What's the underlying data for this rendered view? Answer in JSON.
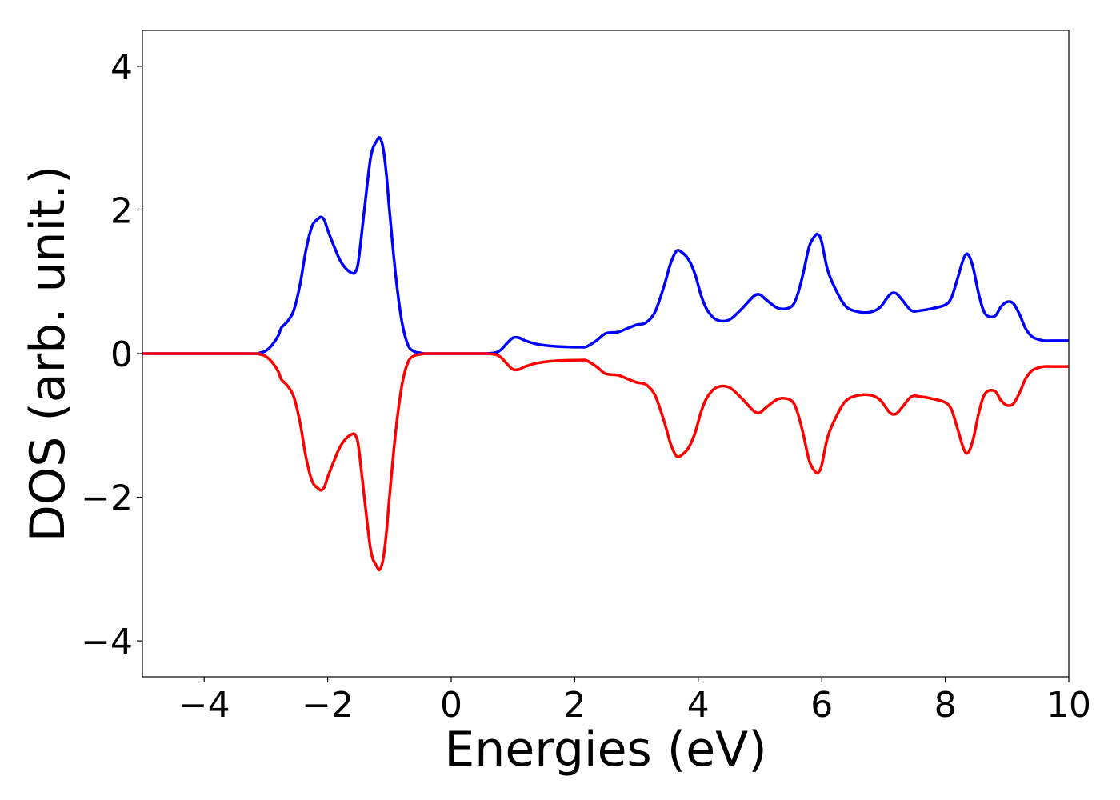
{
  "chart_data": {
    "type": "line",
    "title": "",
    "xlabel": "Energies (eV)",
    "ylabel": "DOS (arb. unit.)",
    "xlim": [
      -5,
      10
    ],
    "ylim": [
      -4.5,
      4.5
    ],
    "xticks": [
      -4,
      -2,
      0,
      2,
      4,
      6,
      8,
      10
    ],
    "xtick_labels": [
      "−4",
      "−2",
      "0",
      "2",
      "4",
      "6",
      "8",
      "10"
    ],
    "yticks": [
      -4,
      -2,
      0,
      2,
      4
    ],
    "ytick_labels": [
      "−4",
      "−2",
      "0",
      "2",
      "4"
    ],
    "grid": false,
    "legend": "none",
    "series": [
      {
        "color": "#0000ff",
        "x": [
          -5,
          -3.3,
          -3.1,
          -3.0,
          -2.9,
          -2.8,
          -2.75,
          -2.65,
          -2.55,
          -2.45,
          -2.35,
          -2.25,
          -2.15,
          -2.1,
          -2.05,
          -2.0,
          -1.9,
          -1.8,
          -1.7,
          -1.6,
          -1.55,
          -1.5,
          -1.4,
          -1.3,
          -1.2,
          -1.15,
          -1.1,
          -1.05,
          -1.0,
          -0.9,
          -0.8,
          -0.7,
          -0.6,
          -0.5,
          -0.4,
          0.0,
          0.5,
          0.7,
          0.8,
          0.9,
          1.0,
          1.1,
          1.2,
          1.4,
          1.7,
          2.1,
          2.2,
          2.35,
          2.5,
          2.7,
          2.85,
          3.0,
          3.15,
          3.3,
          3.45,
          3.55,
          3.65,
          3.75,
          3.85,
          3.95,
          4.05,
          4.15,
          4.3,
          4.5,
          4.7,
          4.9,
          5.0,
          5.1,
          5.3,
          5.5,
          5.6,
          5.7,
          5.8,
          5.9,
          5.95,
          6.0,
          6.1,
          6.25,
          6.4,
          6.6,
          6.8,
          6.95,
          7.1,
          7.2,
          7.3,
          7.45,
          7.6,
          7.8,
          8.0,
          8.1,
          8.2,
          8.3,
          8.37,
          8.45,
          8.55,
          8.65,
          8.8,
          8.9,
          9.0,
          9.1,
          9.2,
          9.3,
          9.4,
          9.5,
          9.6,
          9.8,
          10.0
        ],
        "y": [
          0,
          0,
          0.01,
          0.04,
          0.12,
          0.25,
          0.36,
          0.45,
          0.6,
          0.95,
          1.45,
          1.78,
          1.88,
          1.9,
          1.85,
          1.72,
          1.5,
          1.3,
          1.18,
          1.12,
          1.14,
          1.3,
          2.05,
          2.75,
          2.97,
          3.0,
          2.85,
          2.5,
          2.0,
          1.1,
          0.45,
          0.12,
          0.03,
          0.01,
          0.0,
          0.0,
          0.0,
          0.01,
          0.05,
          0.14,
          0.22,
          0.22,
          0.18,
          0.13,
          0.1,
          0.09,
          0.1,
          0.18,
          0.28,
          0.3,
          0.35,
          0.4,
          0.43,
          0.58,
          0.95,
          1.25,
          1.43,
          1.4,
          1.3,
          1.1,
          0.8,
          0.6,
          0.47,
          0.47,
          0.62,
          0.8,
          0.82,
          0.75,
          0.63,
          0.65,
          0.8,
          1.12,
          1.5,
          1.65,
          1.65,
          1.55,
          1.15,
          0.85,
          0.65,
          0.58,
          0.58,
          0.65,
          0.82,
          0.84,
          0.75,
          0.6,
          0.6,
          0.63,
          0.68,
          0.78,
          1.05,
          1.33,
          1.38,
          1.2,
          0.8,
          0.55,
          0.52,
          0.65,
          0.72,
          0.7,
          0.55,
          0.35,
          0.24,
          0.2,
          0.18,
          0.18,
          0.18
        ]
      },
      {
        "color": "#ff0000",
        "x": [
          -5,
          -3.3,
          -3.1,
          -3.0,
          -2.9,
          -2.8,
          -2.75,
          -2.65,
          -2.55,
          -2.45,
          -2.35,
          -2.25,
          -2.15,
          -2.1,
          -2.05,
          -2.0,
          -1.9,
          -1.8,
          -1.7,
          -1.6,
          -1.55,
          -1.5,
          -1.4,
          -1.3,
          -1.2,
          -1.15,
          -1.1,
          -1.05,
          -1.0,
          -0.9,
          -0.8,
          -0.7,
          -0.6,
          -0.5,
          -0.4,
          0.0,
          0.5,
          0.7,
          0.8,
          0.9,
          1.0,
          1.1,
          1.2,
          1.4,
          1.7,
          2.1,
          2.2,
          2.35,
          2.5,
          2.7,
          2.85,
          3.0,
          3.15,
          3.3,
          3.45,
          3.55,
          3.65,
          3.75,
          3.85,
          3.95,
          4.05,
          4.15,
          4.3,
          4.5,
          4.7,
          4.9,
          5.0,
          5.1,
          5.3,
          5.5,
          5.6,
          5.7,
          5.8,
          5.9,
          5.95,
          6.0,
          6.1,
          6.25,
          6.4,
          6.6,
          6.8,
          6.95,
          7.1,
          7.2,
          7.3,
          7.45,
          7.6,
          7.8,
          8.0,
          8.1,
          8.2,
          8.3,
          8.37,
          8.45,
          8.55,
          8.65,
          8.8,
          8.9,
          9.0,
          9.1,
          9.2,
          9.3,
          9.4,
          9.5,
          9.6,
          9.8,
          10.0
        ],
        "y": [
          0,
          0,
          -0.01,
          -0.04,
          -0.12,
          -0.25,
          -0.36,
          -0.45,
          -0.6,
          -0.95,
          -1.45,
          -1.78,
          -1.88,
          -1.9,
          -1.85,
          -1.72,
          -1.5,
          -1.3,
          -1.18,
          -1.12,
          -1.14,
          -1.3,
          -2.05,
          -2.75,
          -2.97,
          -3.0,
          -2.85,
          -2.5,
          -2.0,
          -1.1,
          -0.45,
          -0.12,
          -0.03,
          -0.01,
          0.0,
          0.0,
          0.0,
          -0.01,
          -0.05,
          -0.14,
          -0.22,
          -0.22,
          -0.18,
          -0.13,
          -0.1,
          -0.09,
          -0.1,
          -0.18,
          -0.28,
          -0.3,
          -0.35,
          -0.4,
          -0.43,
          -0.58,
          -0.95,
          -1.25,
          -1.43,
          -1.4,
          -1.3,
          -1.1,
          -0.8,
          -0.6,
          -0.47,
          -0.47,
          -0.62,
          -0.8,
          -0.82,
          -0.75,
          -0.63,
          -0.65,
          -0.8,
          -1.12,
          -1.5,
          -1.65,
          -1.65,
          -1.55,
          -1.15,
          -0.85,
          -0.65,
          -0.58,
          -0.58,
          -0.65,
          -0.82,
          -0.84,
          -0.75,
          -0.6,
          -0.6,
          -0.63,
          -0.68,
          -0.78,
          -1.05,
          -1.33,
          -1.38,
          -1.2,
          -0.8,
          -0.55,
          -0.52,
          -0.65,
          -0.72,
          -0.7,
          -0.55,
          -0.35,
          -0.24,
          -0.2,
          -0.18,
          -0.18,
          -0.18
        ]
      }
    ]
  }
}
